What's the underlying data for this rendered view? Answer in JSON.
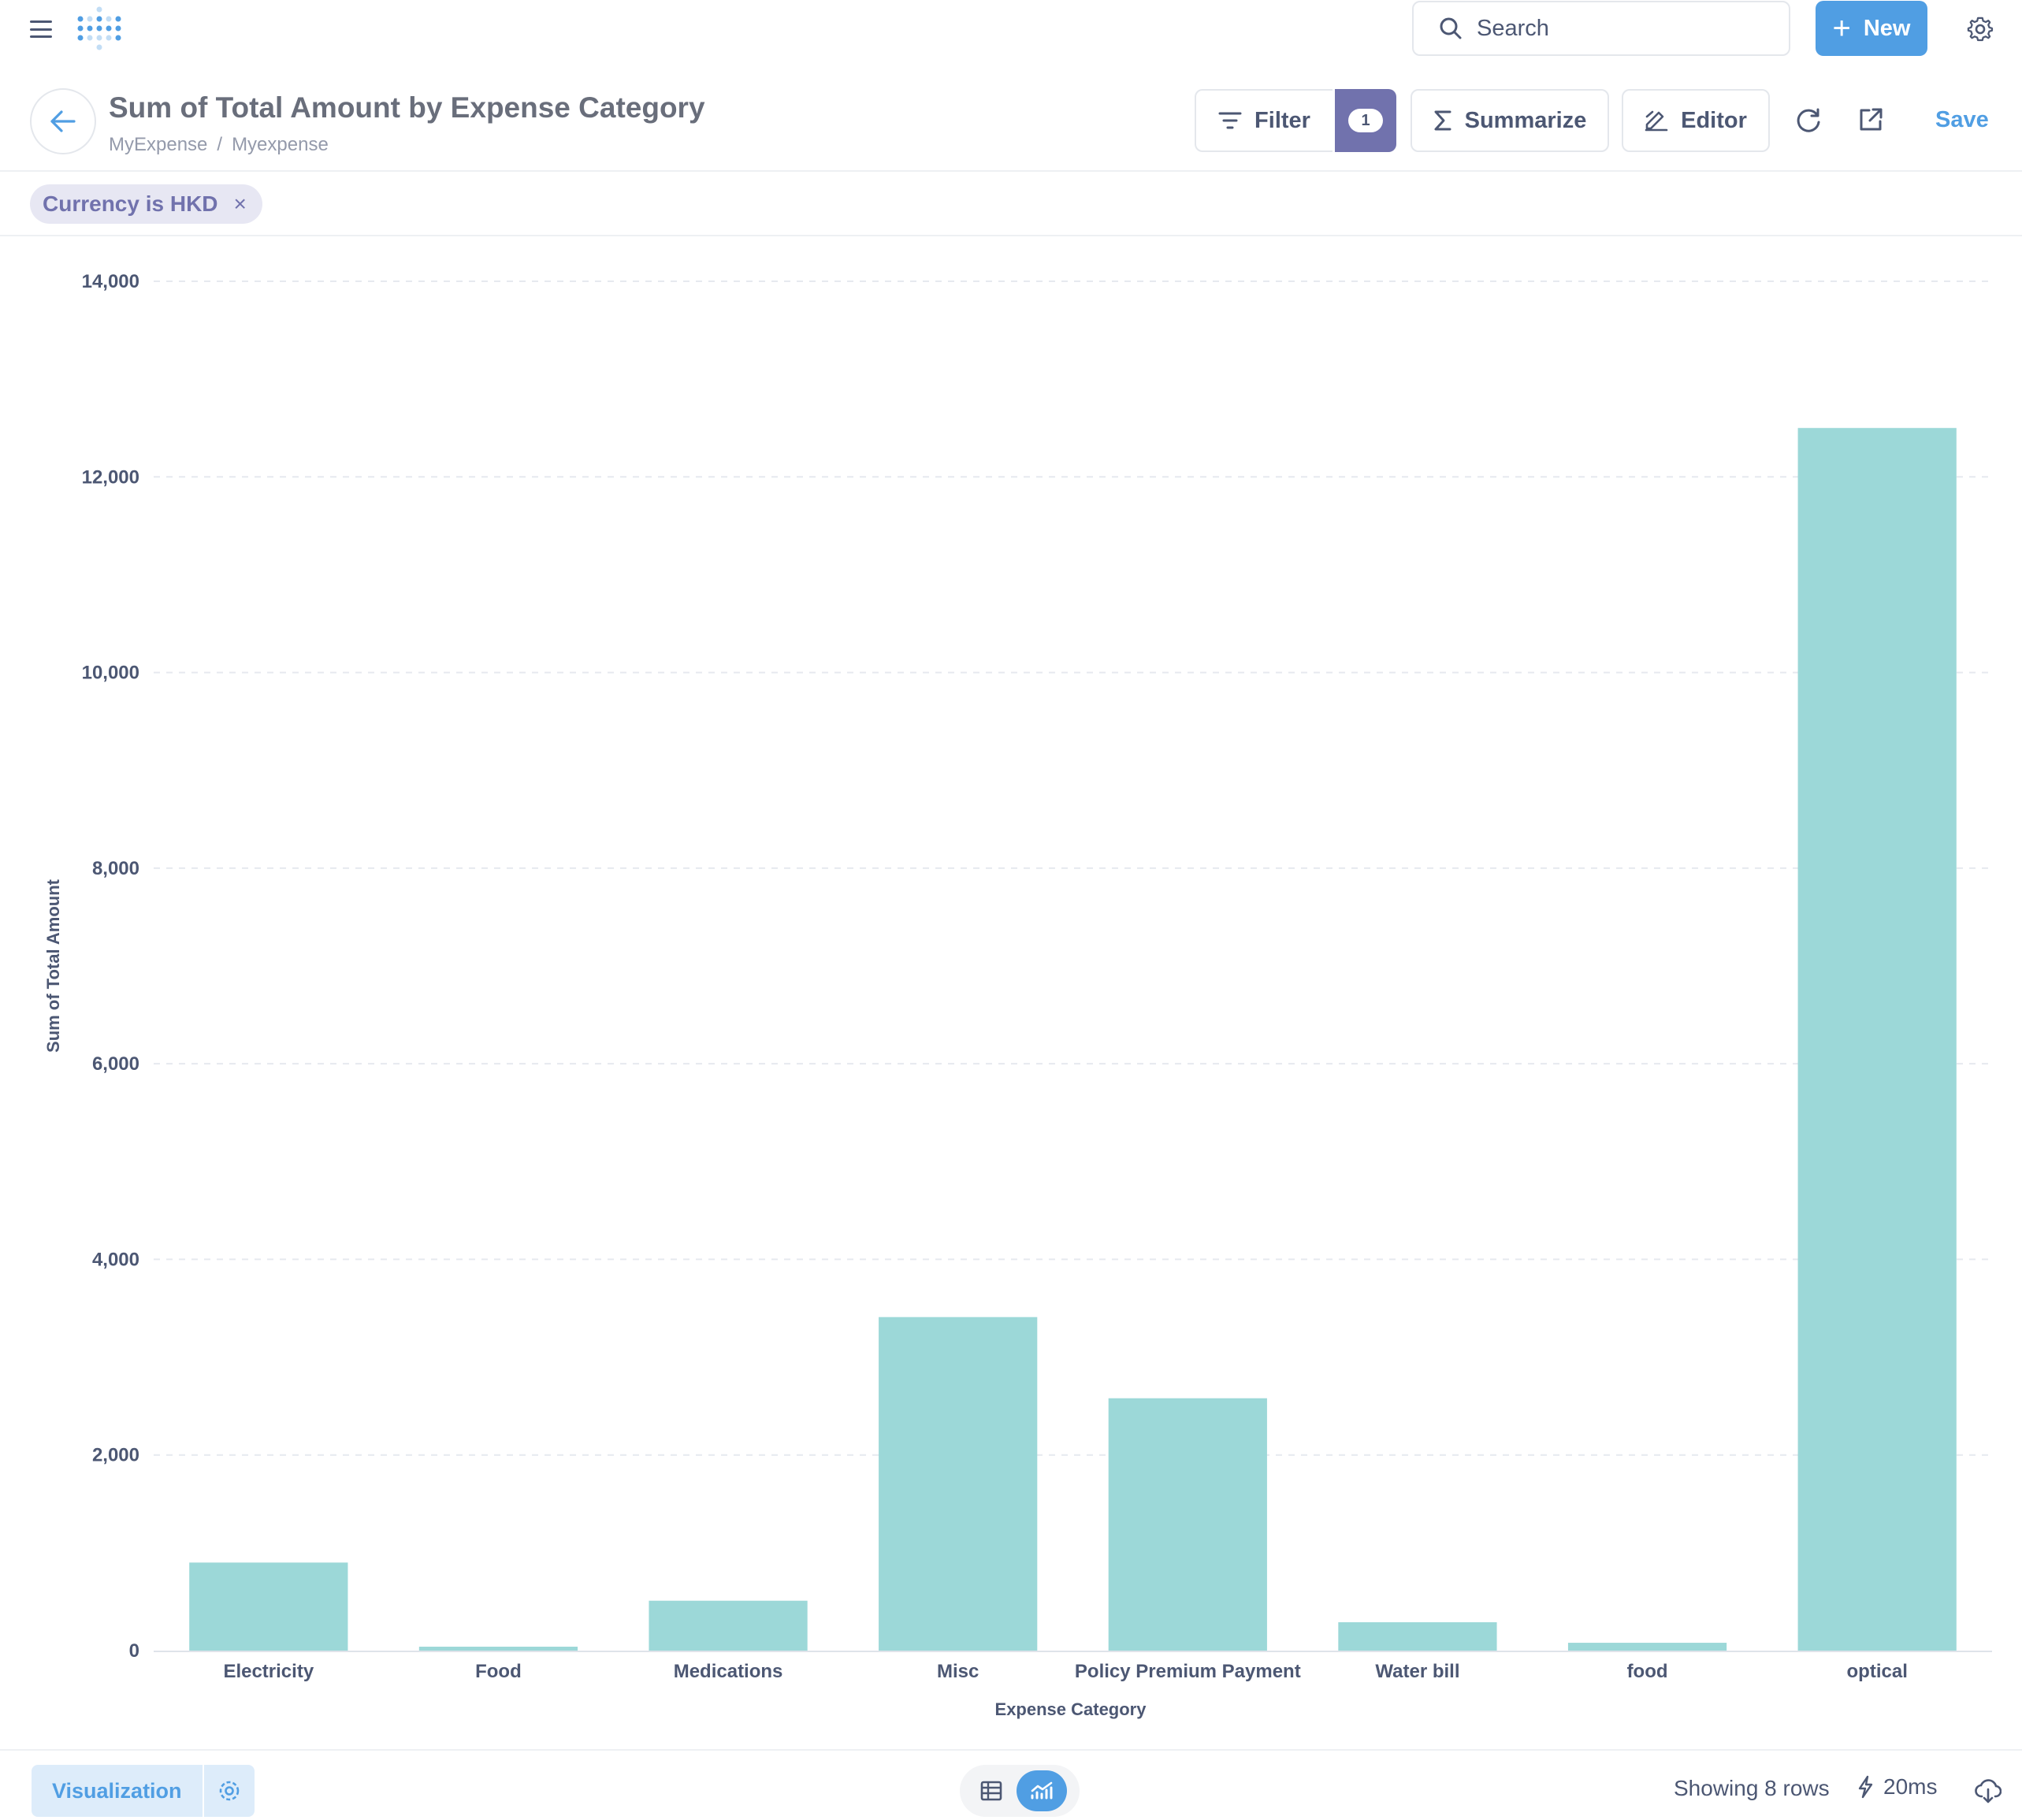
{
  "nav": {
    "search_placeholder": "Search",
    "new_label": "New"
  },
  "header": {
    "title": "Sum of Total Amount by Expense Category",
    "breadcrumb": [
      "MyExpense",
      "Myexpense"
    ],
    "filter_label": "Filter",
    "filter_count": "1",
    "summarize_label": "Summarize",
    "editor_label": "Editor",
    "save_label": "Save"
  },
  "filters": [
    {
      "label": "Currency is HKD",
      "remove": "×"
    }
  ],
  "colors": {
    "accent": "#509ee3",
    "filter": "#7172ad",
    "bar": "#9cd8d8"
  },
  "chart_data": {
    "type": "bar",
    "categories": [
      "Electricity",
      "Food",
      "Medications",
      "Misc",
      "Policy Premium Payment",
      "Water bill",
      "food",
      "optical"
    ],
    "values": [
      900,
      40,
      510,
      3410,
      2580,
      290,
      80,
      12500
    ],
    "title": "",
    "xlabel": "Expense Category",
    "ylabel": "Sum of Total Amount",
    "ylim": [
      0,
      14000
    ],
    "yticks": [
      "0",
      "2,000",
      "4,000",
      "6,000",
      "8,000",
      "10,000",
      "12,000",
      "14,000"
    ],
    "grid": true,
    "legend": "none"
  },
  "footer": {
    "visualization_label": "Visualization",
    "rows_text": "Showing 8 rows",
    "time_text": "20ms"
  }
}
